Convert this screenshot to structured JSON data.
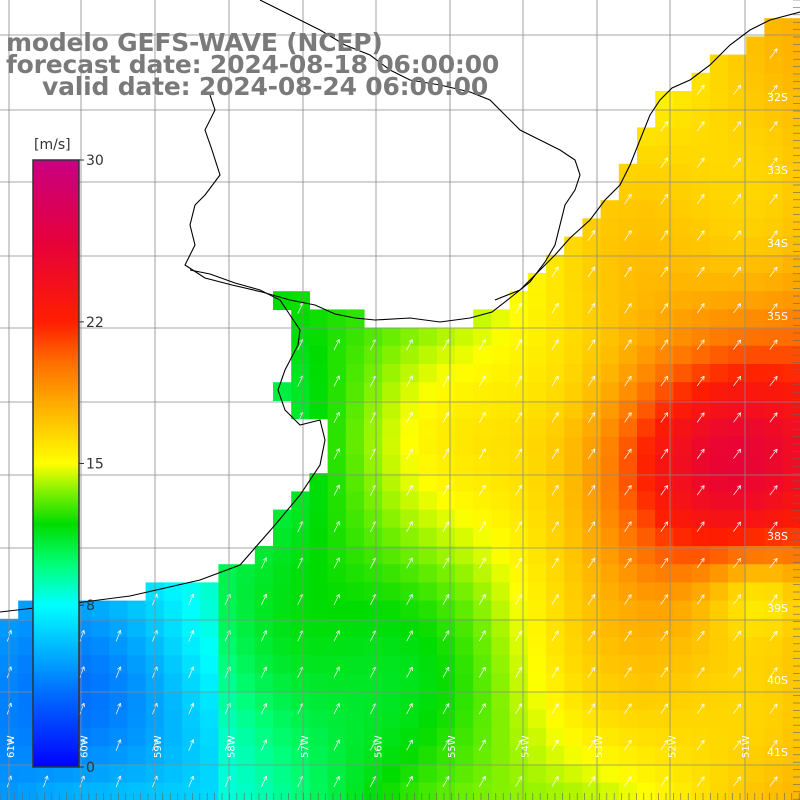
{
  "title": {
    "line1": "modelo GEFS-WAVE (NCEP)",
    "line2": "forecast date: 2024-08-18 06:00:00",
    "line3": "valid date: 2024-08-24 06:00:00"
  },
  "colorbar": {
    "unit": "[m/s]",
    "ticks": [
      {
        "value": 30,
        "label": "30"
      },
      {
        "value": 22,
        "label": "22"
      },
      {
        "value": 15,
        "label": "15"
      },
      {
        "value": 8,
        "label": "8"
      },
      {
        "value": 0,
        "label": "0"
      }
    ],
    "range": [
      0,
      30
    ],
    "colors": [
      "#0000ff",
      "#00aaff",
      "#00ffff",
      "#00ff55",
      "#00dd00",
      "#88ff00",
      "#ffff00",
      "#ffaa00",
      "#ff6600",
      "#ff0000",
      "#dd0044",
      "#cc0088"
    ]
  },
  "lat_labels": [
    "32S",
    "33S",
    "34S",
    "35S",
    "38S",
    "39S",
    "40S",
    "41S"
  ],
  "lon_labels": [
    "61W",
    "60W",
    "59W",
    "58W",
    "57W",
    "56W",
    "55W",
    "54W",
    "53W",
    "52W",
    "51W"
  ],
  "map": {
    "lon_range": [
      -62,
      -51
    ],
    "lat_range": [
      -41.5,
      -30.5
    ],
    "field": "wind speed",
    "colors": {
      "land": "#ffffff",
      "grid": "#888888",
      "coast": "#000000",
      "arrow": "#ffffff"
    }
  }
}
